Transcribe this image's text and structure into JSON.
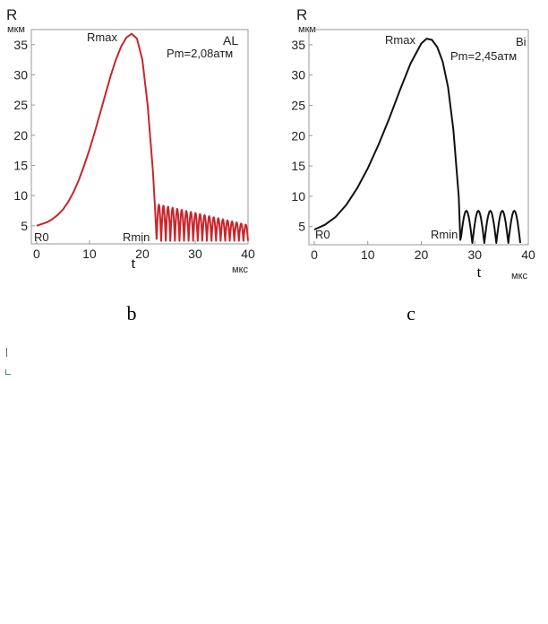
{
  "chart_data": [
    {
      "type": "line",
      "panel_label": "b",
      "element": "AL",
      "pressure_label": "Pm=2,08атм",
      "y_unit_symbol": "R",
      "y_unit": "мкм",
      "x_unit_symbol": "t",
      "x_unit": "мкс",
      "xlim": [
        -1,
        40
      ],
      "ylim": [
        2,
        37.5
      ],
      "xticks": [
        0,
        10,
        20,
        30,
        40
      ],
      "yticks": [
        5,
        10,
        15,
        20,
        25,
        30,
        35
      ],
      "color": "#c8262b",
      "annotations": {
        "r0": "R0",
        "rmax": "Rmax",
        "rmin": "Rmin"
      },
      "series": [
        {
          "name": "R(t)",
          "growth_x": [
            0,
            1,
            2,
            3,
            4,
            5,
            6,
            7,
            8,
            9,
            10,
            11,
            12,
            13,
            14,
            15,
            16,
            17,
            18,
            19,
            20,
            21,
            22,
            22.4,
            22.7
          ],
          "growth_y": [
            5,
            5.3,
            5.6,
            6.1,
            6.8,
            7.7,
            9.0,
            10.6,
            12.6,
            15.0,
            17.6,
            20.5,
            23.6,
            26.7,
            29.8,
            32.5,
            34.7,
            36.2,
            36.8,
            36.0,
            32.5,
            25.0,
            14.0,
            8.0,
            2.8
          ],
          "bounces_start": 22.7,
          "bounces_end": 40,
          "bounces_count": 20,
          "bounce_min": 2.5,
          "bounce_peak_start": 8.5,
          "bounce_peak_end": 5.2
        }
      ]
    },
    {
      "type": "line",
      "panel_label": "c",
      "element": "Bi",
      "pressure_label": "Pm=2,45атм",
      "y_unit_symbol": "R",
      "y_unit": "мкм",
      "x_unit_symbol": "t",
      "x_unit": "мкс",
      "xlim": [
        -1,
        40
      ],
      "ylim": [
        2,
        37.5
      ],
      "xticks": [
        0,
        10,
        20,
        30,
        40
      ],
      "yticks": [
        5,
        10,
        15,
        20,
        25,
        30,
        35
      ],
      "color": "#111111",
      "annotations": {
        "r0": "R0",
        "rmax": "Rmax",
        "rmin": "Rmin"
      },
      "series": [
        {
          "name": "R(t)",
          "growth_x": [
            0,
            2,
            4,
            6,
            8,
            10,
            12,
            14,
            16,
            18,
            20,
            21,
            22,
            23,
            24,
            25,
            26,
            27,
            27.3
          ],
          "growth_y": [
            4.5,
            5.3,
            6.6,
            8.6,
            11.3,
            14.6,
            18.5,
            22.8,
            27.5,
            31.9,
            35.2,
            36.0,
            35.8,
            34.6,
            32.2,
            28.0,
            21.0,
            10.0,
            2.8
          ],
          "bounces_start": 27.3,
          "bounces_end": 38.5,
          "bounces_count": 5,
          "bounce_min": 2.3,
          "bounce_peak_start": 7.6,
          "bounce_peak_end": 7.6
        }
      ]
    }
  ]
}
